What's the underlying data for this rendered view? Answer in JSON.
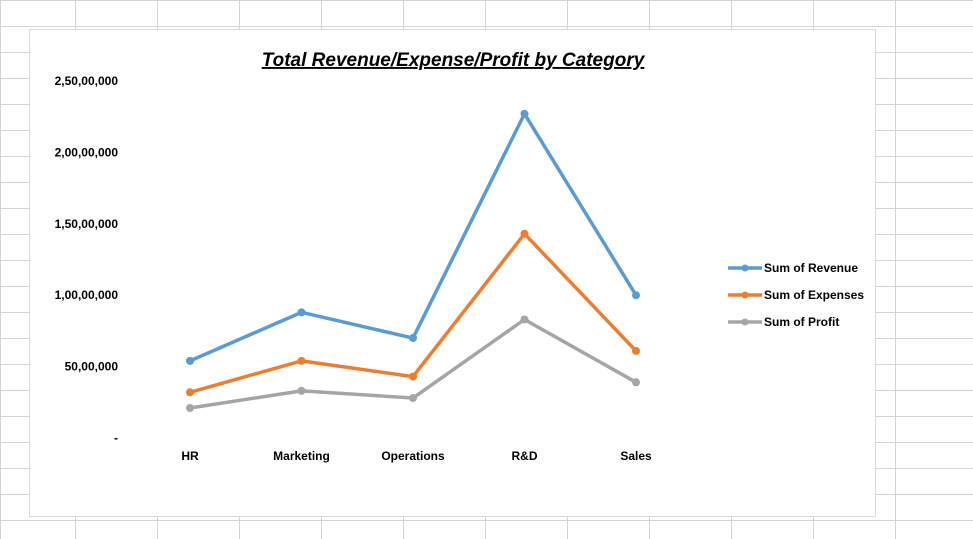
{
  "chart_data": {
    "type": "line",
    "title": "Total Revenue/Expense/Profit by Category",
    "xlabel": "",
    "ylabel": "",
    "categories": [
      "HR",
      "Marketing",
      "Operations",
      "R&D",
      "Sales"
    ],
    "ylim": [
      0,
      25000000
    ],
    "y_ticks": [
      0,
      5000000,
      10000000,
      15000000,
      20000000,
      25000000
    ],
    "y_tick_labels": [
      "-",
      "50,00,000",
      "1,00,00,000",
      "1,50,00,000",
      "2,00,00,000",
      "2,50,00,000"
    ],
    "grid": false,
    "legend_position": "right",
    "series": [
      {
        "name": "Sum of Revenue",
        "color": "#5b9bd5",
        "values": [
          5400000,
          8800000,
          7000000,
          22700000,
          10000000
        ]
      },
      {
        "name": "Sum of Expenses",
        "color": "#ed7d31",
        "values": [
          3200000,
          5400000,
          4300000,
          14300000,
          6100000
        ]
      },
      {
        "name": "Sum of Profit",
        "color": "#a5a5a5",
        "values": [
          2100000,
          3300000,
          2800000,
          8300000,
          3900000
        ]
      }
    ]
  }
}
